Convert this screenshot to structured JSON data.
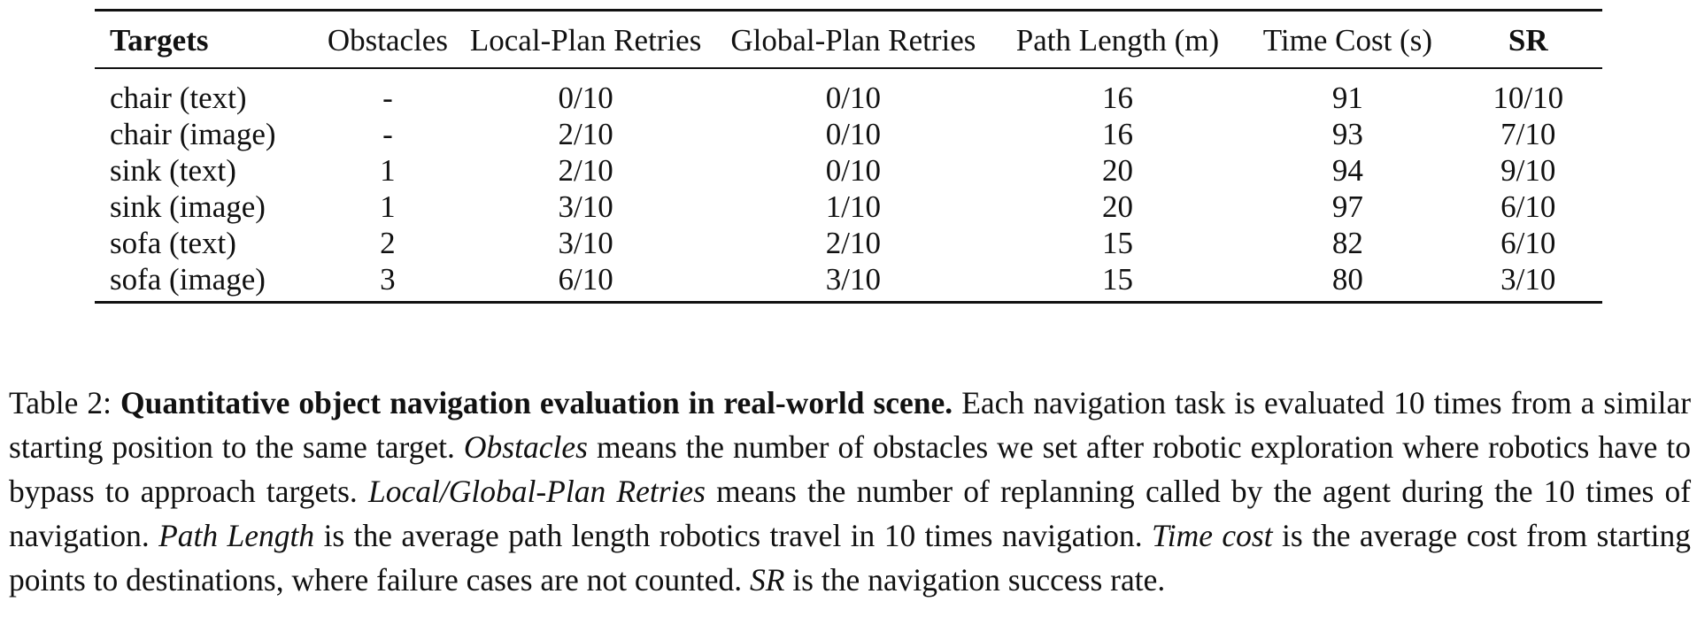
{
  "table": {
    "columns": [
      "Targets",
      "Obstacles",
      "Local-Plan Retries",
      "Global-Plan Retries",
      "Path Length (m)",
      "Time Cost (s)",
      "SR"
    ],
    "rows": [
      [
        "chair (text)",
        "-",
        "0/10",
        "0/10",
        "16",
        "91",
        "10/10"
      ],
      [
        "chair (image)",
        "-",
        "2/10",
        "0/10",
        "16",
        "93",
        "7/10"
      ],
      [
        "sink (text)",
        "1",
        "2/10",
        "0/10",
        "20",
        "94",
        "9/10"
      ],
      [
        "sink (image)",
        "1",
        "3/10",
        "1/10",
        "20",
        "97",
        "6/10"
      ],
      [
        "sofa (text)",
        "2",
        "3/10",
        "2/10",
        "15",
        "82",
        "6/10"
      ],
      [
        "sofa (image)",
        "3",
        "6/10",
        "3/10",
        "15",
        "80",
        "3/10"
      ]
    ]
  },
  "caption": {
    "label": "Table 2:",
    "title": "Quantitative object navigation evaluation in real-world scene.",
    "s1": "Each navigation task is evaluated 10 times from a similar starting position to the same target.",
    "t_obstacles": "Obstacles",
    "s2": "means the number of obstacles we set after robotic exploration where robotics have to bypass to approach targets.",
    "t_retries": "Local/Global-Plan Retries",
    "s3": "means the number of replanning called by the agent during the 10 times of navigation.",
    "t_path": "Path Length",
    "s4": "is the average path length robotics travel in 10 times navigation.",
    "t_time": "Time cost",
    "s5": "is the average cost from starting points to destinations, where failure cases are not counted.",
    "t_sr": "SR",
    "s6": "is the navigation success rate."
  }
}
